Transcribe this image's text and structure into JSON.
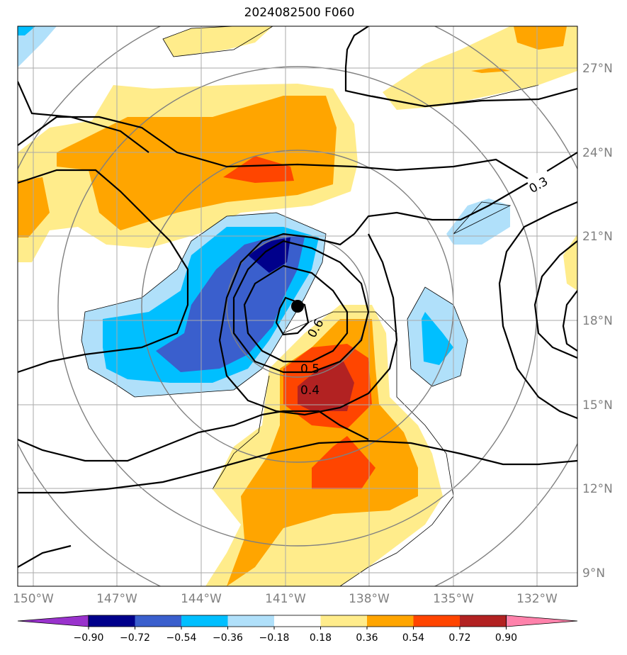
{
  "title": "2024082500 F060",
  "lon_ticks": [
    "150°W",
    "147°W",
    "144°W",
    "141°W",
    "138°W",
    "135°W",
    "132°W"
  ],
  "lat_ticks": [
    "27°N",
    "24°N",
    "21°N",
    "18°N",
    "15°N",
    "12°N",
    "9°N"
  ],
  "colorbar": {
    "colors": [
      "#9932cc",
      "#00008b",
      "#3a5fcd",
      "#00bfff",
      "#b0e0fa",
      "#ffffff",
      "#ffec8b",
      "#ffa500",
      "#ff4500",
      "#b22222",
      "#ff82ab"
    ],
    "labels": [
      "−0.90",
      "−0.72",
      "−0.54",
      "−0.36",
      "−0.18",
      "0.18",
      "0.36",
      "0.54",
      "0.72",
      "0.90"
    ]
  },
  "contour_labels": [
    "0.3",
    "0.6",
    "0.5",
    "0.4"
  ],
  "storm_center": {
    "lon": -140.6,
    "lat": 18.5
  }
}
